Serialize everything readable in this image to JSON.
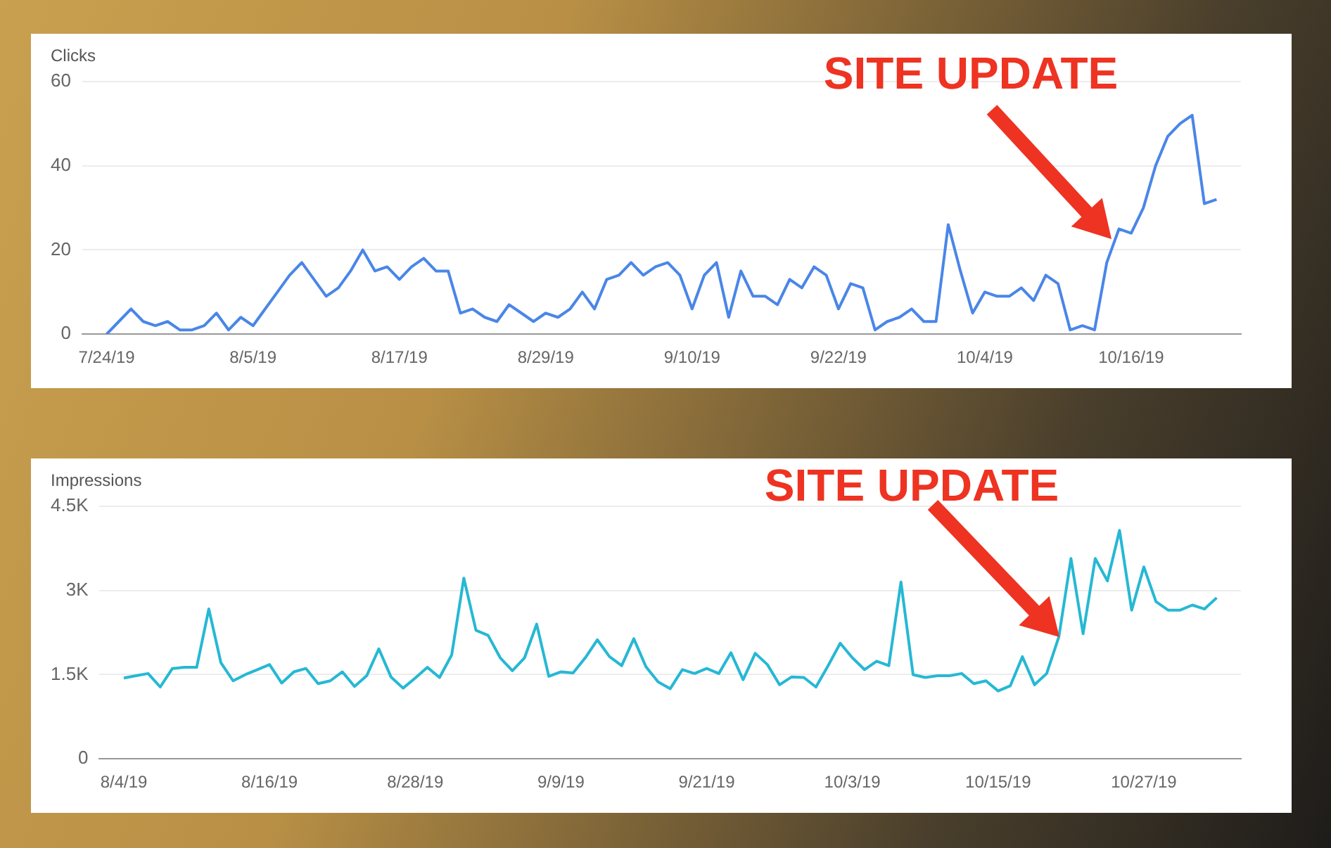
{
  "chart_data": [
    {
      "type": "line",
      "ylabel": "Clicks",
      "grid": "y",
      "marker": "none",
      "line_style": "solid",
      "x": [
        "--07-24",
        "--07-25",
        "--07-26",
        "--07-27",
        "--07-28",
        "--07-29",
        "--07-30",
        "--07-31",
        "--08-01",
        "--08-02",
        "--08-03",
        "--08-04",
        "--08-05",
        "--08-06",
        "--08-07",
        "--08-08",
        "--08-09",
        "--08-10",
        "--08-11",
        "--08-12",
        "--08-13",
        "--08-14",
        "--08-15",
        "--08-16",
        "--08-17",
        "--08-18",
        "--08-19",
        "--08-20",
        "--08-21",
        "--08-22",
        "--08-23",
        "--08-24",
        "--08-25",
        "--08-26",
        "--08-27",
        "--08-28",
        "--08-29",
        "--08-30",
        "--08-31",
        "--09-01",
        "--09-02",
        "--09-03",
        "--09-04",
        "--09-05",
        "--09-06",
        "--09-07",
        "--09-08",
        "--09-09",
        "--09-10",
        "--09-11",
        "--09-12",
        "--09-13",
        "--09-14",
        "--09-15",
        "--09-16",
        "--09-17",
        "--09-18",
        "--09-19",
        "--09-20",
        "--09-21",
        "--09-22",
        "--09-23",
        "--09-24",
        "--09-25",
        "--09-26",
        "--09-27",
        "--09-28",
        "--09-29",
        "--09-30",
        "--10-01",
        "--10-02",
        "--10-03",
        "--10-04",
        "--10-05",
        "--10-06",
        "--10-07",
        "--10-08",
        "--10-09",
        "--10-10",
        "--10-11",
        "--10-12",
        "--10-13",
        "--10-14",
        "--10-15",
        "--10-16",
        "--10-17",
        "--10-18",
        "--10-19",
        "--10-20",
        "--10-21",
        "--10-22",
        "--10-23"
      ],
      "series": [
        {
          "color": "#4a86e8",
          "values": [
            0,
            3,
            6,
            3,
            2,
            3,
            1,
            1,
            2,
            5,
            1,
            4,
            2,
            6,
            10,
            14,
            17,
            13,
            9,
            11,
            15,
            20,
            15,
            16,
            13,
            16,
            18,
            15,
            15,
            5,
            6,
            4,
            3,
            7,
            5,
            3,
            5,
            4,
            6,
            10,
            6,
            13,
            14,
            17,
            14,
            16,
            17,
            14,
            6,
            14,
            17,
            4,
            15,
            9,
            9,
            7,
            13,
            11,
            16,
            14,
            6,
            12,
            11,
            1,
            3,
            4,
            6,
            3,
            3,
            26,
            15,
            5,
            10,
            9,
            9,
            11,
            8,
            14,
            12,
            1,
            2,
            1,
            17,
            25,
            24,
            30,
            40,
            47,
            50,
            52,
            31,
            32
          ]
        }
      ],
      "xlim": [
        "--07-22",
        "--10-25"
      ],
      "xticks": [
        {
          "value": "--07-24",
          "label": "7/24/19"
        },
        {
          "value": "--08-05",
          "label": "8/5/19"
        },
        {
          "value": "--08-17",
          "label": "8/17/19"
        },
        {
          "value": "--08-29",
          "label": "8/29/19"
        },
        {
          "value": "--09-10",
          "label": "9/10/19"
        },
        {
          "value": "--09-22",
          "label": "9/22/19"
        },
        {
          "value": "--10-04",
          "label": "10/4/19"
        },
        {
          "value": "--10-16",
          "label": "10/16/19"
        }
      ],
      "ylim": [
        0,
        60
      ],
      "yticks": [
        0,
        20,
        40,
        60
      ],
      "annotations": [
        "SITE UPDATE"
      ]
    },
    {
      "type": "line",
      "ylabel": "Impressions",
      "grid": "y",
      "marker": "none",
      "line_style": "solid",
      "x": [
        "--08-04",
        "--08-05",
        "--08-06",
        "--08-07",
        "--08-08",
        "--08-09",
        "--08-10",
        "--08-11",
        "--08-12",
        "--08-13",
        "--08-14",
        "--08-15",
        "--08-16",
        "--08-17",
        "--08-18",
        "--08-19",
        "--08-20",
        "--08-21",
        "--08-22",
        "--08-23",
        "--08-24",
        "--08-25",
        "--08-26",
        "--08-27",
        "--08-28",
        "--08-29",
        "--08-30",
        "--08-31",
        "--09-01",
        "--09-02",
        "--09-03",
        "--09-04",
        "--09-05",
        "--09-06",
        "--09-07",
        "--09-08",
        "--09-09",
        "--09-10",
        "--09-11",
        "--09-12",
        "--09-13",
        "--09-14",
        "--09-15",
        "--09-16",
        "--09-17",
        "--09-18",
        "--09-19",
        "--09-20",
        "--09-21",
        "--09-22",
        "--09-23",
        "--09-24",
        "--09-25",
        "--09-26",
        "--09-27",
        "--09-28",
        "--09-29",
        "--09-30",
        "--10-01",
        "--10-02",
        "--10-03",
        "--10-04",
        "--10-05",
        "--10-06",
        "--10-07",
        "--10-08",
        "--10-09",
        "--10-10",
        "--10-11",
        "--10-12",
        "--10-13",
        "--10-14",
        "--10-15",
        "--10-16",
        "--10-17",
        "--10-18",
        "--10-19",
        "--10-20",
        "--10-21",
        "--10-22",
        "--10-23",
        "--10-24",
        "--10-25",
        "--10-26",
        "--10-27",
        "--10-28",
        "--10-29",
        "--10-30",
        "--10-31",
        "--11-01",
        "--11-02"
      ],
      "series": [
        {
          "color": "#26b8d4",
          "values": [
            1440,
            1480,
            1520,
            1280,
            1610,
            1630,
            1630,
            2670,
            1710,
            1390,
            1500,
            1590,
            1680,
            1350,
            1550,
            1610,
            1340,
            1390,
            1550,
            1290,
            1480,
            1960,
            1460,
            1260,
            1440,
            1630,
            1450,
            1850,
            3220,
            2290,
            2200,
            1800,
            1570,
            1800,
            2400,
            1470,
            1550,
            1530,
            1800,
            2120,
            1820,
            1660,
            2140,
            1640,
            1370,
            1250,
            1590,
            1520,
            1610,
            1520,
            1890,
            1410,
            1880,
            1680,
            1320,
            1460,
            1450,
            1280,
            1660,
            2060,
            1800,
            1590,
            1740,
            1660,
            3150,
            1500,
            1450,
            1480,
            1480,
            1520,
            1340,
            1390,
            1210,
            1300,
            1820,
            1320,
            1520,
            2170,
            3570,
            2230,
            3570,
            3170,
            4070,
            2650,
            3420,
            2800,
            2650,
            2650,
            2740,
            2670,
            2870
          ]
        }
      ],
      "xlim": [
        "--08-02",
        "--11-04"
      ],
      "xticks": [
        {
          "value": "--08-04",
          "label": "8/4/19"
        },
        {
          "value": "--08-16",
          "label": "8/16/19"
        },
        {
          "value": "--08-28",
          "label": "8/28/19"
        },
        {
          "value": "--09-09",
          "label": "9/9/19"
        },
        {
          "value": "--09-21",
          "label": "9/21/19"
        },
        {
          "value": "--10-03",
          "label": "10/3/19"
        },
        {
          "value": "--10-15",
          "label": "10/15/19"
        },
        {
          "value": "--10-27",
          "label": "10/27/19"
        }
      ],
      "ylim": [
        0,
        4500
      ],
      "yticks": [
        {
          "value": 0,
          "label": "0"
        },
        {
          "value": 1500,
          "label": "1.5K"
        },
        {
          "value": 3000,
          "label": "3K"
        },
        {
          "value": 4500,
          "label": "4.5K"
        }
      ],
      "annotations": [
        "SITE UPDATE"
      ]
    }
  ]
}
